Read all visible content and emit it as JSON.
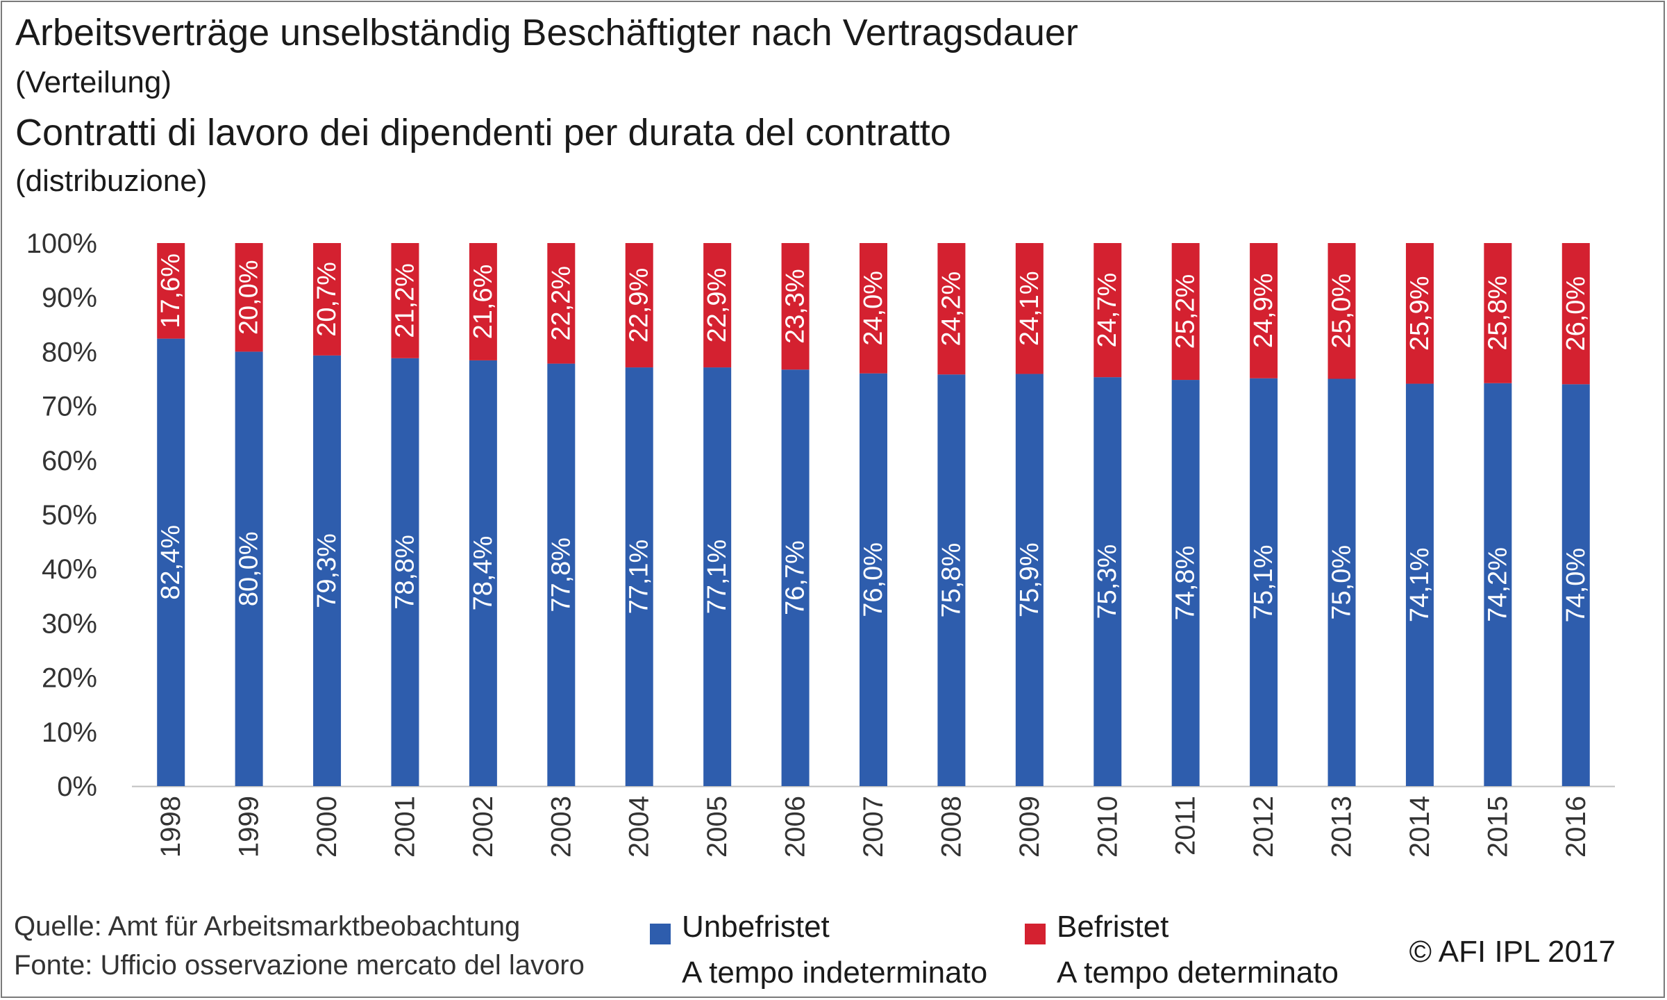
{
  "header": {
    "title_de": "Arbeitsverträge unselbständig Beschäftigter nach Vertragsdauer",
    "subtitle_de": "(Verteilung)",
    "title_it": "Contratti di lavoro dei dipendenti per durata del contratto",
    "subtitle_it": "(distribuzione)"
  },
  "footer": {
    "source_de": "Quelle: Amt für Arbeitsmarktbeobachtung",
    "source_it": "Fonte: Ufficio osservazione mercato del lavoro",
    "copyright": "© AFI IPL 2017"
  },
  "legend": [
    {
      "label_de": "Unbefristet",
      "label_it": "A tempo indeterminato",
      "color": "#2e5dad"
    },
    {
      "label_de": "Befristet",
      "label_it": "A tempo determinato",
      "color": "#d42130"
    }
  ],
  "chart_data": {
    "type": "bar",
    "stacked": true,
    "categories": [
      "1998",
      "1999",
      "2000",
      "2001",
      "2002",
      "2003",
      "2004",
      "2005",
      "2006",
      "2007",
      "2008",
      "2009",
      "2010",
      "2011",
      "2012",
      "2013",
      "2014",
      "2015",
      "2016"
    ],
    "series": [
      {
        "name": "Unbefristet",
        "color": "#2e5dad",
        "values": [
          82.4,
          80.0,
          79.3,
          78.8,
          78.4,
          77.8,
          77.1,
          77.1,
          76.7,
          76.0,
          75.8,
          75.9,
          75.3,
          74.8,
          75.1,
          75.0,
          74.1,
          74.2,
          74.0
        ],
        "labels": [
          "82,4%",
          "80,0%",
          "79,3%",
          "78,8%",
          "78,4%",
          "77,8%",
          "77,1%",
          "77,1%",
          "76,7%",
          "76,0%",
          "75,8%",
          "75,9%",
          "75,3%",
          "74,8%",
          "75,1%",
          "75,0%",
          "74,1%",
          "74,2%",
          "74,0%"
        ]
      },
      {
        "name": "Befristet",
        "color": "#d42130",
        "values": [
          17.6,
          20.0,
          20.7,
          21.2,
          21.6,
          22.2,
          22.9,
          22.9,
          23.3,
          24.0,
          24.2,
          24.1,
          24.7,
          25.2,
          24.9,
          25.0,
          25.9,
          25.8,
          26.0
        ],
        "labels": [
          "17,6%",
          "20,0%",
          "20,7%",
          "21,2%",
          "21,6%",
          "22,2%",
          "22,9%",
          "22,9%",
          "23,3%",
          "24,0%",
          "24,2%",
          "24,1%",
          "24,7%",
          "25,2%",
          "24,9%",
          "25,0%",
          "25,9%",
          "25,8%",
          "26,0%"
        ]
      }
    ],
    "y_ticks": [
      "0%",
      "10%",
      "20%",
      "30%",
      "40%",
      "50%",
      "60%",
      "70%",
      "80%",
      "90%",
      "100%"
    ],
    "ylim": [
      0,
      100
    ],
    "grid": false,
    "legend_position": "bottom"
  }
}
